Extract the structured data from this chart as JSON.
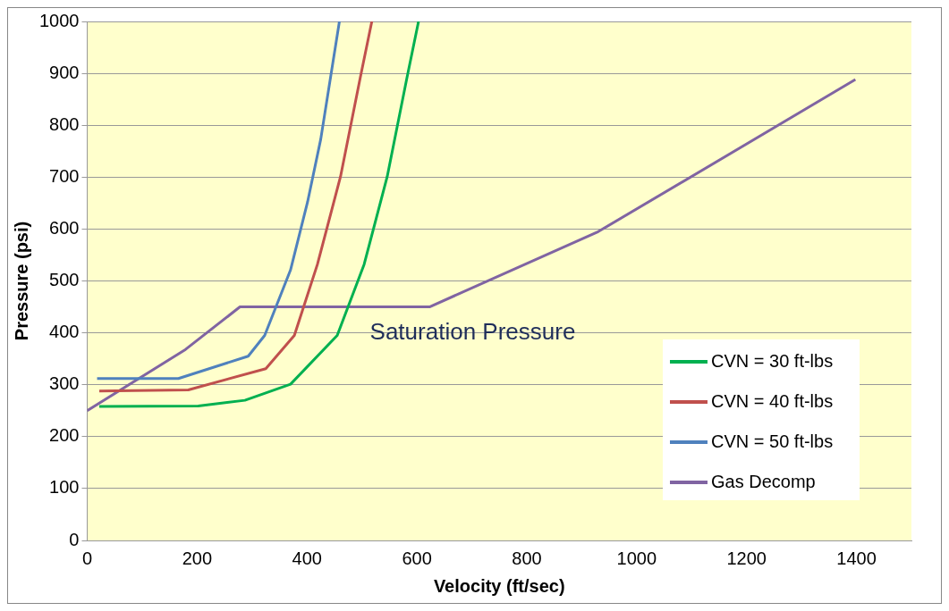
{
  "chart_data": {
    "type": "line",
    "xlabel": "Velocity (ft/sec)",
    "ylabel": "Pressure (psi)",
    "xlim": [
      0,
      1500
    ],
    "xticks": [
      0,
      200,
      400,
      600,
      800,
      1000,
      1200,
      1400
    ],
    "ylim": [
      0,
      1000
    ],
    "yticks": [
      0,
      100,
      200,
      300,
      400,
      500,
      600,
      700,
      800,
      900,
      1000
    ],
    "grid": "y",
    "legend": "bottom right",
    "marker": "none",
    "line_style": "solid",
    "annotations": [
      "Saturation Pressure"
    ],
    "series": [
      {
        "name": "CVN = 30 ft-lbs",
        "color": "#00b050",
        "x": [
          22,
          202,
          287,
          370,
          455,
          504,
          546,
          582,
          603
        ],
        "values": [
          258,
          259,
          270,
          301,
          395,
          532,
          701,
          892,
          1000
        ]
      },
      {
        "name": "CVN = 40 ft-lbs",
        "color": "#c0504d",
        "x": [
          22,
          184,
          325,
          377,
          419,
          461,
          497,
          518
        ],
        "values": [
          288,
          290,
          331,
          395,
          532,
          701,
          892,
          1000
        ]
      },
      {
        "name": "CVN = 50 ft-lbs",
        "color": "#4f81bd",
        "x": [
          18,
          166,
          293,
          323,
          370,
          401,
          425,
          459
        ],
        "values": [
          312,
          312,
          355,
          395,
          521,
          652,
          773,
          1000
        ]
      },
      {
        "name": "Gas Decomp",
        "color": "#8064a2",
        "x": [
          0,
          179,
          278,
          623,
          930,
          1398
        ],
        "values": [
          250,
          368,
          450,
          450,
          595,
          888
        ]
      }
    ]
  }
}
